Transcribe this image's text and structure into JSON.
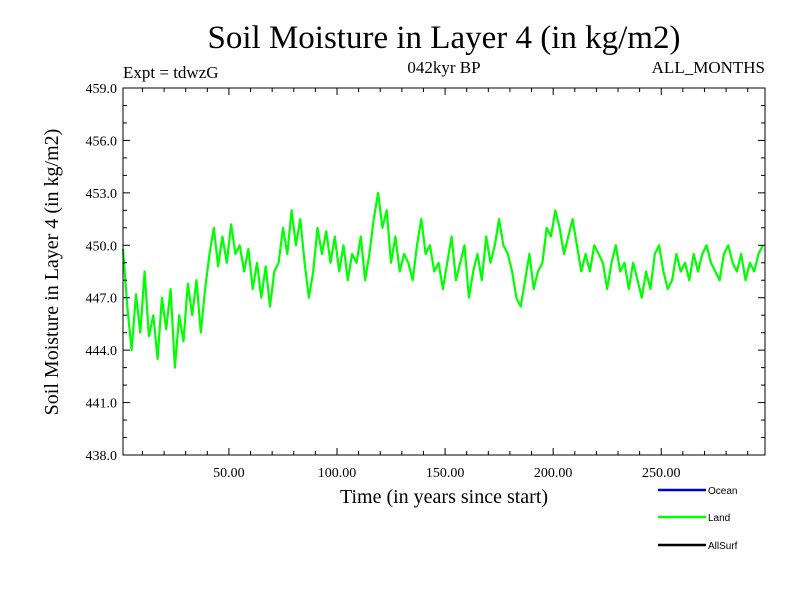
{
  "chart_data": {
    "type": "line",
    "title": "Soil Moisture in Layer 4 (in kg/m2)",
    "subtitle_left": "Expt = tdwzG",
    "subtitle_center": "042kyr BP",
    "subtitle_right": "ALL_MONTHS",
    "xlabel": "Time (in years since start)",
    "ylabel": "Soil Moisture in Layer 4 (in kg/m2)",
    "xlim": [
      1,
      298
    ],
    "ylim": [
      438.0,
      459.0
    ],
    "x_ticks": [
      50,
      100,
      150,
      200,
      250
    ],
    "x_tick_labels": [
      "50.00",
      "100.00",
      "150.00",
      "200.00",
      "250.00"
    ],
    "y_ticks": [
      438,
      441,
      444,
      447,
      450,
      453,
      456,
      459
    ],
    "y_tick_labels": [
      "438.0",
      "441.0",
      "444.0",
      "447.0",
      "450.0",
      "453.0",
      "456.0",
      "459.0"
    ],
    "grid": false,
    "legend_position": "bottom-right",
    "series": [
      {
        "name": "Ocean",
        "color": "#0000cc",
        "values": []
      },
      {
        "name": "Land",
        "color": "#00ff00",
        "sample_step_years": 2,
        "x_start": 1,
        "values": [
          449.8,
          446.5,
          444.0,
          447.2,
          445.0,
          448.5,
          444.8,
          446.0,
          443.5,
          447.0,
          445.2,
          447.5,
          443.0,
          446.0,
          444.5,
          447.8,
          446.0,
          448.0,
          445.0,
          447.5,
          449.5,
          451.0,
          448.8,
          450.5,
          449.0,
          451.2,
          449.5,
          450.0,
          448.5,
          449.8,
          447.5,
          449.0,
          447.0,
          448.8,
          446.5,
          448.5,
          449.0,
          451.0,
          449.5,
          452.0,
          450.0,
          451.5,
          449.0,
          447.0,
          448.5,
          451.0,
          449.5,
          450.8,
          449.0,
          450.5,
          448.5,
          450.0,
          448.0,
          449.5,
          449.0,
          450.5,
          448.0,
          449.5,
          451.5,
          453.0,
          451.0,
          452.0,
          449.0,
          450.5,
          448.5,
          449.5,
          449.0,
          448.0,
          450.0,
          451.5,
          449.5,
          450.0,
          448.5,
          449.0,
          447.5,
          449.0,
          450.5,
          448.0,
          449.0,
          450.0,
          447.0,
          448.5,
          449.5,
          448.0,
          450.5,
          449.0,
          450.0,
          451.5,
          450.0,
          449.5,
          448.5,
          447.0,
          446.5,
          448.0,
          449.5,
          447.5,
          448.5,
          449.0,
          451.0,
          450.5,
          452.0,
          451.0,
          449.5,
          450.5,
          451.5,
          450.0,
          448.5,
          449.5,
          448.5,
          450.0,
          449.5,
          449.0,
          447.5,
          449.0,
          450.0,
          448.5,
          449.0,
          447.5,
          449.0,
          448.0,
          447.0,
          448.5,
          447.5,
          449.5,
          450.0,
          448.5,
          447.5,
          448.0,
          449.5,
          448.5,
          449.0,
          448.0,
          449.5,
          448.5,
          449.5,
          450.0,
          449.0,
          448.5,
          448.0,
          449.5,
          450.0,
          449.0,
          448.5,
          449.5,
          448.0,
          449.0,
          448.5,
          449.5,
          450.0
        ]
      },
      {
        "name": "AllSurf",
        "color": "#000000",
        "values": []
      }
    ]
  }
}
